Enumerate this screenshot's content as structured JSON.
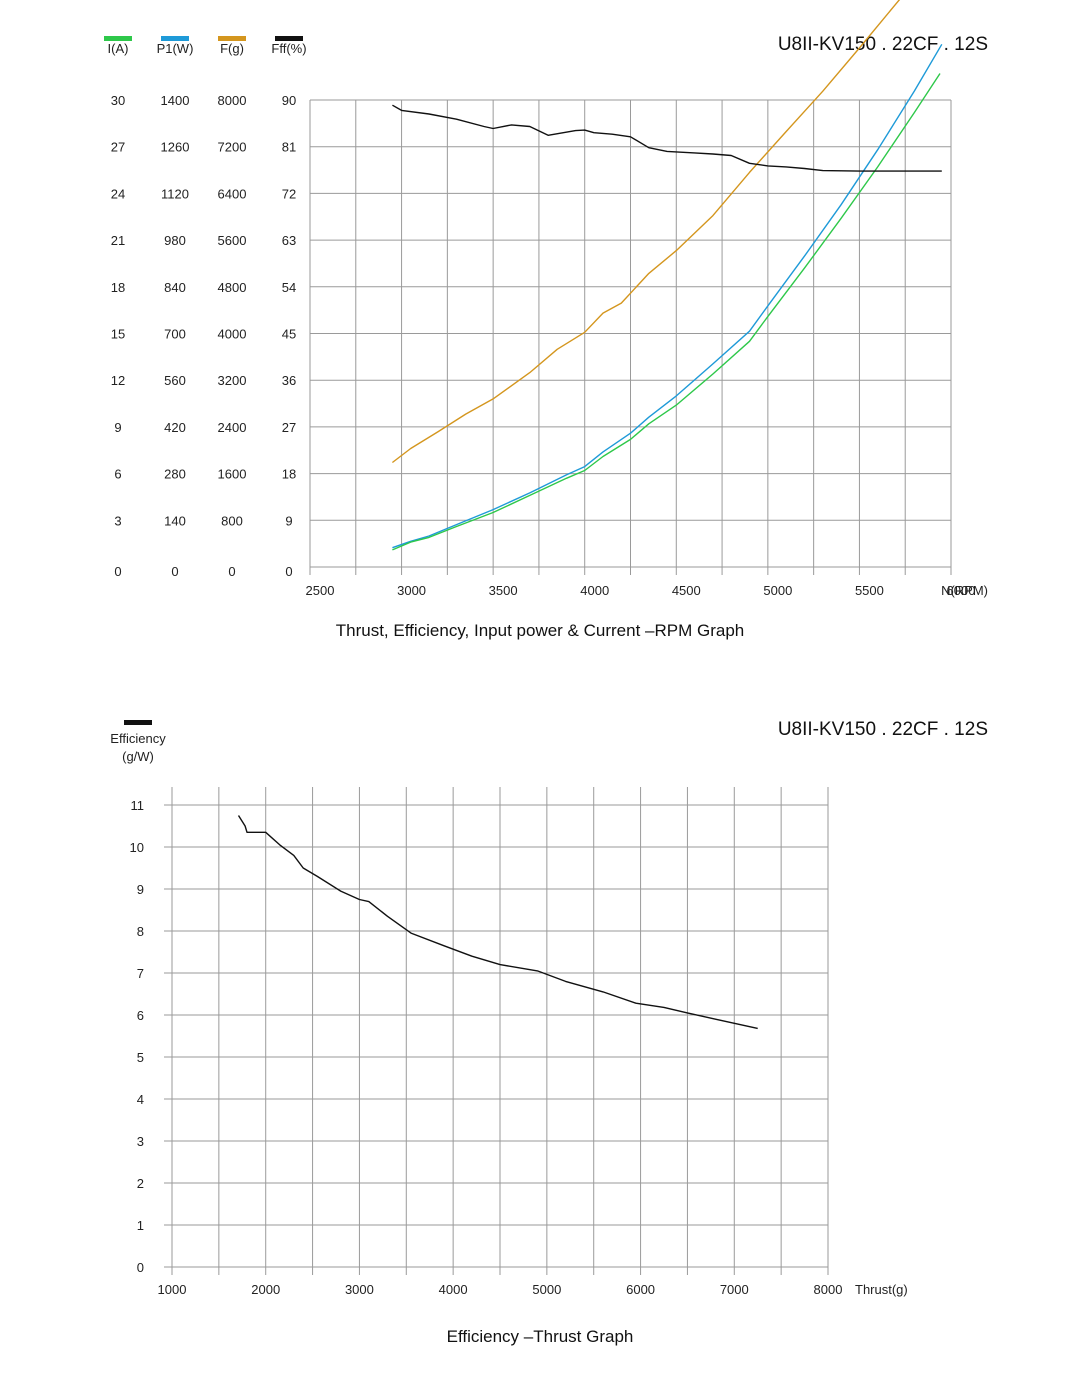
{
  "chart_data": [
    {
      "type": "line",
      "model": "U8II-KV150 . 22CF . 12S",
      "caption": "Thrust, Efficiency, Input power & Current –RPM Graph",
      "xlabel": "N(RPM)",
      "xlim": [
        2500,
        6000
      ],
      "x_ticks": [
        "2500",
        "3000",
        "3500",
        "4000",
        "4500",
        "5000",
        "5500",
        "6000"
      ],
      "grid": true,
      "legend_position": "top-left",
      "axes": [
        {
          "label": "I(A)",
          "color": "#2ec84a",
          "ticks": [
            "0",
            "3",
            "6",
            "9",
            "12",
            "15",
            "18",
            "21",
            "24",
            "27",
            "30"
          ],
          "ylim": [
            0,
            30
          ]
        },
        {
          "label": "P1(W)",
          "color": "#1e9ad8",
          "ticks": [
            "0",
            "140",
            "280",
            "420",
            "560",
            "700",
            "840",
            "980",
            "1120",
            "1260",
            "1400"
          ],
          "ylim": [
            0,
            1400
          ]
        },
        {
          "label": "F(g)",
          "color": "#d4961e",
          "ticks": [
            "0",
            "800",
            "1600",
            "2400",
            "3200",
            "4000",
            "4800",
            "5600",
            "6400",
            "7200",
            "8000"
          ],
          "ylim": [
            0,
            8000
          ]
        },
        {
          "label": "Fff(%)",
          "color": "#111111",
          "ticks": [
            "0",
            "9",
            "18",
            "27",
            "36",
            "45",
            "54",
            "63",
            "72",
            "81",
            "90"
          ],
          "ylim": [
            0,
            90
          ]
        }
      ],
      "series": [
        {
          "name": "I(A)",
          "color": "#2ec84a",
          "axis": 0,
          "x": [
            2950,
            3050,
            3150,
            3300,
            3500,
            3700,
            3900,
            4000,
            4100,
            4250,
            4350,
            4500,
            4700,
            4900,
            5000,
            5200,
            5400,
            5600,
            5800,
            5940
          ],
          "y": [
            1.1,
            1.6,
            1.9,
            2.6,
            3.5,
            4.6,
            5.7,
            6.2,
            7.1,
            8.2,
            9.2,
            10.4,
            12.4,
            14.5,
            16.1,
            19.2,
            22.4,
            25.7,
            29.2,
            31.7
          ]
        },
        {
          "name": "P1(W)",
          "color": "#1e9ad8",
          "axis": 1,
          "x": [
            2950,
            3050,
            3150,
            3300,
            3500,
            3700,
            3900,
            4000,
            4100,
            4250,
            4350,
            4500,
            4700,
            4900,
            5000,
            5200,
            5400,
            5600,
            5800,
            5950
          ],
          "y": [
            58,
            77,
            93,
            127,
            172,
            222,
            276,
            301,
            345,
            401,
            449,
            513,
            609,
            707,
            783,
            932,
            1086,
            1251,
            1427,
            1567
          ]
        },
        {
          "name": "F(g)",
          "color": "#d4961e",
          "axis": 2,
          "x": [
            2950,
            3050,
            3200,
            3350,
            3500,
            3700,
            3850,
            4000,
            4100,
            4200,
            4350,
            4500,
            4700,
            4900,
            5100,
            5300,
            5500,
            5700,
            5900
          ],
          "y": [
            1790,
            2030,
            2320,
            2620,
            2880,
            3330,
            3730,
            4020,
            4350,
            4520,
            5030,
            5420,
            6020,
            6760,
            7460,
            8150,
            8890,
            9650,
            10400
          ]
        },
        {
          "name": "Fff(%)",
          "color": "#111111",
          "axis": 3,
          "x": [
            2950,
            3000,
            3150,
            3300,
            3450,
            3500,
            3600,
            3700,
            3800,
            3950,
            4000,
            4050,
            4150,
            4250,
            4350,
            4450,
            4600,
            4700,
            4800,
            4900,
            5000,
            5100,
            5200,
            5300,
            5500,
            5700,
            5950
          ],
          "y": [
            89.0,
            88.0,
            87.3,
            86.3,
            84.9,
            84.5,
            85.2,
            84.9,
            83.2,
            84.1,
            84.2,
            83.7,
            83.4,
            82.9,
            80.8,
            80.1,
            79.8,
            79.6,
            79.3,
            77.8,
            77.3,
            77.1,
            76.8,
            76.4,
            76.3,
            76.3,
            76.3
          ]
        }
      ]
    },
    {
      "type": "line",
      "model": "U8II-KV150 . 22CF . 12S",
      "caption": "Efficiency –Thrust Graph",
      "ylabel_line1": "Efficiency",
      "ylabel_line2": "(g/W)",
      "xlabel": "Thrust(g)",
      "xlim": [
        1000,
        8000
      ],
      "ylim": [
        0,
        11
      ],
      "x_ticks": [
        "1000",
        "2000",
        "3000",
        "4000",
        "5000",
        "6000",
        "7000",
        "8000"
      ],
      "y_ticks": [
        "0",
        "1",
        "2",
        "3",
        "4",
        "5",
        "6",
        "7",
        "8",
        "9",
        "10",
        "11"
      ],
      "grid": true,
      "legend_position": "top-left",
      "series": [
        {
          "name": "",
          "color": "#111111",
          "x": [
            1710,
            1780,
            1800,
            1860,
            1920,
            2000,
            2150,
            2300,
            2400,
            2550,
            2800,
            3000,
            3100,
            3300,
            3550,
            3900,
            4200,
            4500,
            4900,
            5200,
            5600,
            5950,
            6250,
            6500,
            6800,
            7250
          ],
          "y": [
            10.75,
            10.5,
            10.35,
            10.35,
            10.35,
            10.35,
            10.05,
            9.8,
            9.5,
            9.3,
            8.95,
            8.75,
            8.7,
            8.35,
            7.95,
            7.65,
            7.4,
            7.2,
            7.05,
            6.8,
            6.55,
            6.28,
            6.18,
            6.05,
            5.9,
            5.68
          ]
        }
      ]
    }
  ]
}
